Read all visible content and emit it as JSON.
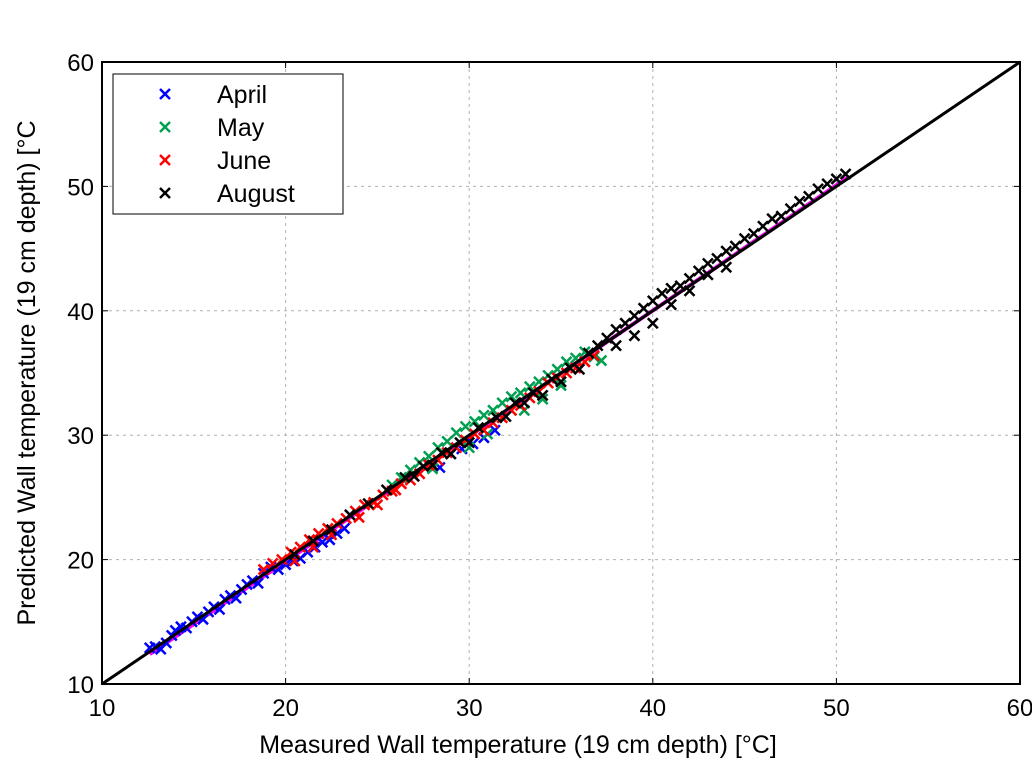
{
  "chart_data": {
    "type": "scatter",
    "xlabel": "Measured Wall temperature (19 cm depth) [°C]",
    "ylabel": "Predicted Wall temperature (19 cm depth) [°C",
    "xlim": [
      10,
      60
    ],
    "ylim": [
      10,
      60
    ],
    "xticks": [
      "10",
      "20",
      "30",
      "40",
      "50",
      "60"
    ],
    "yticks": [
      "10",
      "20",
      "30",
      "40",
      "50",
      "60"
    ],
    "grid": true,
    "legend_position": "top-left",
    "marker": "x",
    "series": [
      {
        "name": "April",
        "color": "#0000ff",
        "points": [
          [
            12.6,
            12.9
          ],
          [
            12.9,
            13.0
          ],
          [
            13.2,
            12.8
          ],
          [
            13.5,
            13.3
          ],
          [
            13.8,
            13.9
          ],
          [
            14.0,
            14.3
          ],
          [
            14.3,
            14.6
          ],
          [
            14.6,
            14.5
          ],
          [
            14.9,
            15.0
          ],
          [
            15.2,
            15.4
          ],
          [
            15.5,
            15.2
          ],
          [
            15.8,
            15.8
          ],
          [
            16.1,
            16.2
          ],
          [
            16.4,
            16.0
          ],
          [
            16.7,
            16.8
          ],
          [
            17.0,
            17.1
          ],
          [
            17.3,
            16.9
          ],
          [
            17.6,
            17.6
          ],
          [
            17.9,
            18.0
          ],
          [
            18.2,
            18.3
          ],
          [
            18.5,
            18.1
          ],
          [
            18.8,
            18.9
          ],
          [
            19.2,
            19.4
          ],
          [
            19.6,
            19.2
          ],
          [
            20.0,
            19.6
          ],
          [
            20.4,
            19.9
          ],
          [
            20.8,
            20.1
          ],
          [
            21.2,
            20.6
          ],
          [
            21.6,
            21.0
          ],
          [
            22.0,
            21.4
          ],
          [
            22.4,
            21.6
          ],
          [
            22.8,
            22.1
          ],
          [
            23.2,
            22.5
          ],
          [
            28.4,
            27.4
          ],
          [
            29.0,
            28.5
          ],
          [
            29.6,
            28.9
          ],
          [
            30.2,
            29.3
          ],
          [
            30.8,
            29.8
          ],
          [
            31.4,
            30.4
          ]
        ]
      },
      {
        "name": "May",
        "color": "#00a050",
        "points": [
          [
            25.8,
            26.0
          ],
          [
            26.3,
            26.6
          ],
          [
            26.8,
            27.2
          ],
          [
            27.3,
            27.8
          ],
          [
            27.8,
            28.3
          ],
          [
            28.3,
            29.0
          ],
          [
            28.8,
            29.5
          ],
          [
            29.3,
            30.2
          ],
          [
            29.8,
            30.7
          ],
          [
            30.3,
            31.1
          ],
          [
            30.8,
            31.6
          ],
          [
            31.3,
            32.0
          ],
          [
            31.8,
            32.6
          ],
          [
            32.3,
            33.1
          ],
          [
            32.8,
            33.4
          ],
          [
            33.3,
            33.9
          ],
          [
            33.8,
            34.3
          ],
          [
            34.3,
            34.8
          ],
          [
            34.8,
            35.3
          ],
          [
            35.3,
            35.9
          ],
          [
            35.8,
            36.2
          ],
          [
            36.3,
            36.7
          ],
          [
            36.8,
            36.3
          ],
          [
            37.2,
            36.0
          ],
          [
            33.0,
            32.0
          ],
          [
            34.0,
            32.9
          ],
          [
            35.0,
            34.0
          ],
          [
            31.0,
            30.1
          ],
          [
            30.0,
            29.0
          ],
          [
            28.0,
            27.3
          ]
        ]
      },
      {
        "name": "June",
        "color": "#ff0000",
        "points": [
          [
            18.8,
            19.2
          ],
          [
            19.3,
            19.7
          ],
          [
            19.8,
            20.0
          ],
          [
            20.3,
            20.6
          ],
          [
            20.8,
            21.0
          ],
          [
            21.3,
            21.6
          ],
          [
            21.8,
            22.1
          ],
          [
            22.3,
            22.5
          ],
          [
            22.8,
            22.9
          ],
          [
            23.3,
            23.3
          ],
          [
            23.8,
            23.9
          ],
          [
            24.3,
            24.4
          ],
          [
            24.8,
            24.6
          ],
          [
            25.3,
            25.2
          ],
          [
            25.8,
            25.5
          ],
          [
            26.3,
            26.1
          ],
          [
            26.8,
            26.4
          ],
          [
            27.3,
            26.9
          ],
          [
            27.8,
            27.6
          ],
          [
            28.3,
            28.0
          ],
          [
            28.8,
            28.6
          ],
          [
            29.3,
            29.0
          ],
          [
            29.8,
            29.6
          ],
          [
            30.3,
            30.1
          ],
          [
            30.8,
            30.4
          ],
          [
            31.3,
            31.0
          ],
          [
            31.8,
            31.4
          ],
          [
            32.3,
            32.0
          ],
          [
            32.8,
            32.4
          ],
          [
            33.3,
            33.0
          ],
          [
            33.8,
            33.5
          ],
          [
            34.3,
            34.2
          ],
          [
            34.8,
            34.6
          ],
          [
            35.3,
            35.0
          ],
          [
            35.8,
            35.4
          ],
          [
            36.3,
            35.9
          ],
          [
            36.8,
            36.4
          ],
          [
            20.5,
            19.9
          ],
          [
            21.5,
            21.0
          ],
          [
            22.5,
            22.0
          ],
          [
            24.0,
            23.4
          ],
          [
            25.0,
            24.4
          ],
          [
            26.0,
            25.6
          ],
          [
            27.0,
            26.7
          ]
        ]
      },
      {
        "name": "August",
        "color": "#000000",
        "points": [
          [
            20.5,
            20.4
          ],
          [
            21.5,
            21.5
          ],
          [
            22.5,
            22.4
          ],
          [
            23.5,
            23.6
          ],
          [
            24.5,
            24.5
          ],
          [
            25.5,
            25.6
          ],
          [
            26.5,
            26.6
          ],
          [
            27.5,
            27.5
          ],
          [
            28.5,
            28.6
          ],
          [
            29.5,
            29.4
          ],
          [
            30.5,
            30.6
          ],
          [
            31.5,
            31.4
          ],
          [
            32.5,
            32.6
          ],
          [
            33.5,
            33.4
          ],
          [
            34.5,
            34.5
          ],
          [
            35.5,
            35.4
          ],
          [
            36.5,
            36.6
          ],
          [
            37.0,
            37.2
          ],
          [
            37.5,
            37.8
          ],
          [
            38.0,
            38.5
          ],
          [
            38.5,
            39.0
          ],
          [
            39.0,
            39.6
          ],
          [
            39.5,
            40.2
          ],
          [
            40.0,
            40.8
          ],
          [
            40.5,
            41.4
          ],
          [
            41.0,
            41.8
          ],
          [
            41.5,
            42.0
          ],
          [
            42.0,
            42.6
          ],
          [
            42.5,
            43.2
          ],
          [
            43.0,
            43.8
          ],
          [
            43.5,
            44.2
          ],
          [
            44.0,
            44.8
          ],
          [
            44.5,
            45.2
          ],
          [
            45.0,
            45.8
          ],
          [
            45.5,
            46.2
          ],
          [
            46.0,
            46.8
          ],
          [
            46.5,
            47.4
          ],
          [
            47.0,
            47.6
          ],
          [
            47.5,
            48.2
          ],
          [
            48.0,
            48.8
          ],
          [
            48.5,
            49.2
          ],
          [
            49.0,
            49.8
          ],
          [
            49.5,
            50.2
          ],
          [
            50.0,
            50.6
          ],
          [
            50.5,
            51.0
          ],
          [
            38.0,
            37.2
          ],
          [
            39.0,
            38.0
          ],
          [
            40.0,
            39.0
          ],
          [
            41.0,
            40.5
          ],
          [
            42.0,
            41.6
          ],
          [
            43.0,
            42.9
          ],
          [
            44.0,
            43.5
          ],
          [
            36.0,
            35.3
          ],
          [
            35.0,
            34.3
          ],
          [
            34.0,
            33.2
          ],
          [
            33.0,
            32.6
          ],
          [
            32.0,
            31.5
          ],
          [
            30.0,
            29.4
          ],
          [
            29.0,
            28.5
          ],
          [
            28.0,
            27.6
          ],
          [
            27.0,
            26.7
          ]
        ]
      }
    ],
    "lines": [
      {
        "name": "1:1 reference",
        "color": "#000000",
        "x": [
          10,
          60
        ],
        "y": [
          10,
          60
        ]
      },
      {
        "name": "linear fit",
        "color": "#ff00ff",
        "x": [
          12.6,
          50.6
        ],
        "y": [
          12.4,
          50.7
        ]
      }
    ]
  }
}
